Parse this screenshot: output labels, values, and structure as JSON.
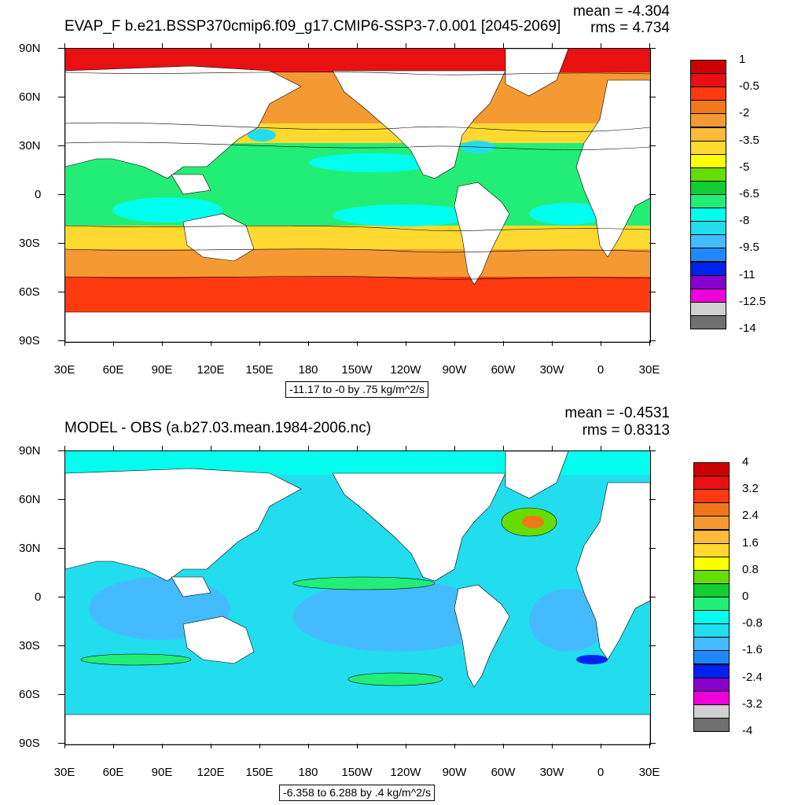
{
  "panels": [
    {
      "title": "EVAP_F b.e21.BSSP370cmip6.f09_g17.CMIP6-SSP3-7.0.001 [2045-2069]",
      "mean_label": "mean = -4.304",
      "rms_label": "rms = 4.734",
      "range_label": "-11.17 to -0 by .75 kg/m^2/s",
      "colorbar_labels": [
        "1",
        "-0.5",
        "-2",
        "-3.5",
        "-5",
        "-6.5",
        "-8",
        "-9.5",
        "-11",
        "-12.5",
        "-14"
      ],
      "colorbar_colors": [
        "#cc0000",
        "#e81010",
        "#ff3a10",
        "#f0781a",
        "#f59a32",
        "#ffba3a",
        "#ffd830",
        "#ffff00",
        "#66dd00",
        "#11cc33",
        "#22ee77",
        "#00ffee",
        "#22ddee",
        "#44bbff",
        "#2288ff",
        "#0022ee",
        "#8800cc",
        "#ee00dd",
        "#d0d0d0",
        "#707070"
      ]
    },
    {
      "title": "MODEL - OBS (a.b27.03.mean.1984-2006.nc)",
      "mean_label": "mean = -0.4531",
      "rms_label": "rms = 0.8313",
      "range_label": "-6.358 to 6.288 by .4 kg/m^2/s",
      "colorbar_labels": [
        "4",
        "3.2",
        "2.4",
        "1.6",
        "0.8",
        "0",
        "-0.8",
        "-1.6",
        "-2.4",
        "-3.2",
        "-4"
      ],
      "colorbar_colors": [
        "#cc0000",
        "#e81010",
        "#ff3a10",
        "#f0781a",
        "#f59a32",
        "#ffba3a",
        "#ffd830",
        "#ffff00",
        "#66dd00",
        "#11cc33",
        "#22ee77",
        "#00ffee",
        "#22ddee",
        "#44bbff",
        "#2288ff",
        "#0022ee",
        "#8800cc",
        "#ee00dd",
        "#d0d0d0",
        "#707070"
      ]
    }
  ],
  "lat_labels": [
    "90N",
    "60N",
    "30N",
    "0",
    "30S",
    "60S",
    "90S"
  ],
  "lon_labels": [
    "30E",
    "60E",
    "90E",
    "120E",
    "150E",
    "180",
    "150W",
    "120W",
    "90W",
    "60W",
    "30W",
    "0",
    "30E"
  ],
  "colors": {
    "land": "#ffffff",
    "top_ocean": "#f59a32",
    "bottom_ocean": "#22ddee"
  }
}
